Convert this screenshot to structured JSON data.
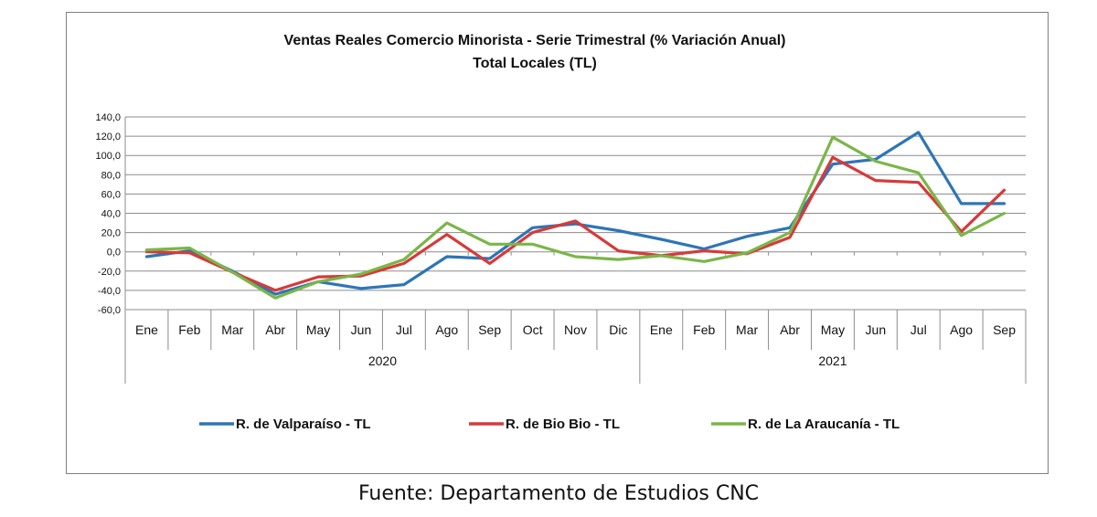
{
  "chart_data": {
    "type": "line",
    "title": "Ventas Reales Comercio Minorista - Serie Trimestral (% Variación Anual)",
    "subtitle": "Total Locales (TL)",
    "xlabel": "",
    "ylabel": "",
    "ylim": [
      -60,
      140
    ],
    "yticks": [
      "140,0",
      "120,0",
      "100,0",
      "80,0",
      "60,0",
      "40,0",
      "20,0",
      "0,0",
      "-20,0",
      "-40,0",
      "-60,0"
    ],
    "ytick_values": [
      140,
      120,
      100,
      80,
      60,
      40,
      20,
      0,
      -20,
      -40,
      -60
    ],
    "categories": [
      "Ene",
      "Feb",
      "Mar",
      "Abr",
      "May",
      "Jun",
      "Jul",
      "Ago",
      "Sep",
      "Oct",
      "Nov",
      "Dic",
      "Ene",
      "Feb",
      "Mar",
      "Abr",
      "May",
      "Jun",
      "Jul",
      "Ago",
      "Sep"
    ],
    "groups": [
      {
        "label": "2020",
        "count": 12
      },
      {
        "label": "2021",
        "count": 9
      }
    ],
    "grid": true,
    "legend_position": "bottom",
    "series": [
      {
        "name": "R. de Valparaíso - TL",
        "color": "#2e75b6",
        "values": [
          -5,
          1,
          -20,
          -44,
          -31,
          -38,
          -34,
          -5,
          -7,
          25,
          29,
          22,
          13,
          3,
          16,
          25,
          91,
          96,
          124,
          50,
          50
        ]
      },
      {
        "name": "R. de Bio Bio - TL",
        "color": "#d63a3a",
        "values": [
          0,
          -1,
          -21,
          -40,
          -26,
          -25,
          -12,
          18,
          -12,
          20,
          32,
          1,
          -4,
          1,
          -2,
          15,
          98,
          74,
          72,
          21,
          64
        ]
      },
      {
        "name": "R. de La Araucanía - TL",
        "color": "#7ab648",
        "values": [
          2,
          4,
          -21,
          -48,
          -31,
          -23,
          -8,
          30,
          8,
          8,
          -5,
          -8,
          -4,
          -10,
          -1,
          20,
          119,
          94,
          82,
          17,
          40
        ]
      }
    ]
  },
  "footer": {
    "source": "Fuente: Departamento de Estudios CNC"
  }
}
